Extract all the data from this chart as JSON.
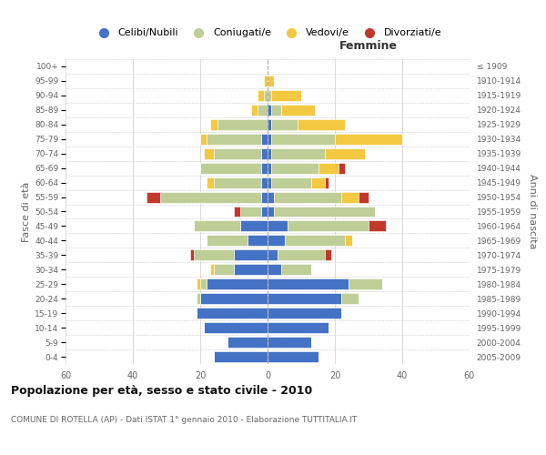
{
  "age_groups": [
    "0-4",
    "5-9",
    "10-14",
    "15-19",
    "20-24",
    "25-29",
    "30-34",
    "35-39",
    "40-44",
    "45-49",
    "50-54",
    "55-59",
    "60-64",
    "65-69",
    "70-74",
    "75-79",
    "80-84",
    "85-89",
    "90-94",
    "95-99",
    "100+"
  ],
  "birth_years": [
    "2005-2009",
    "2000-2004",
    "1995-1999",
    "1990-1994",
    "1985-1989",
    "1980-1984",
    "1975-1979",
    "1970-1974",
    "1965-1969",
    "1960-1964",
    "1955-1959",
    "1950-1954",
    "1945-1949",
    "1940-1944",
    "1935-1939",
    "1930-1934",
    "1925-1929",
    "1920-1924",
    "1915-1919",
    "1910-1914",
    "≤ 1909"
  ],
  "male_celibi": [
    16,
    12,
    19,
    21,
    20,
    18,
    10,
    10,
    6,
    8,
    2,
    2,
    2,
    2,
    2,
    2,
    0,
    0,
    0,
    0,
    0
  ],
  "male_coniugati": [
    0,
    0,
    0,
    0,
    1,
    2,
    6,
    12,
    12,
    14,
    6,
    30,
    14,
    18,
    14,
    16,
    15,
    3,
    1,
    0,
    0
  ],
  "male_vedovi": [
    0,
    0,
    0,
    0,
    0,
    1,
    1,
    0,
    0,
    0,
    0,
    0,
    2,
    0,
    3,
    2,
    2,
    2,
    2,
    1,
    0
  ],
  "male_divorziati": [
    0,
    0,
    0,
    0,
    0,
    0,
    0,
    1,
    0,
    0,
    2,
    4,
    0,
    0,
    0,
    0,
    0,
    0,
    0,
    0,
    0
  ],
  "female_nubili": [
    15,
    13,
    18,
    22,
    22,
    24,
    4,
    3,
    5,
    6,
    2,
    2,
    1,
    1,
    1,
    1,
    1,
    1,
    0,
    0,
    0
  ],
  "female_coniugate": [
    0,
    0,
    0,
    0,
    5,
    10,
    9,
    14,
    18,
    24,
    30,
    20,
    12,
    14,
    16,
    19,
    8,
    3,
    1,
    0,
    0
  ],
  "female_vedove": [
    0,
    0,
    0,
    0,
    0,
    0,
    0,
    0,
    2,
    0,
    0,
    5,
    4,
    6,
    12,
    20,
    14,
    10,
    9,
    2,
    0
  ],
  "female_divorziate": [
    0,
    0,
    0,
    0,
    0,
    0,
    0,
    2,
    0,
    5,
    0,
    3,
    1,
    2,
    0,
    0,
    0,
    0,
    0,
    0,
    0
  ],
  "color_celibi": "#4472C4",
  "color_coniugati": "#BECE96",
  "color_vedovi": "#F5C842",
  "color_divorziati": "#C0392B",
  "title": "Popolazione per età, sesso e stato civile - 2010",
  "subtitle": "COMUNE DI ROTELLA (AP) - Dati ISTAT 1° gennaio 2010 - Elaborazione TUTTITALIA.IT",
  "label_femmine": "Femmine",
  "ylabel_left": "Fasce di età",
  "ylabel_right": "Anni di nascita",
  "legend_labels": [
    "Celibi/Nubili",
    "Coniugati/e",
    "Vedovi/e",
    "Divorziati/e"
  ],
  "xlim": 60,
  "bg_color": "#ffffff",
  "grid_color": "#cccccc",
  "text_color": "#666666",
  "title_color": "#111111"
}
